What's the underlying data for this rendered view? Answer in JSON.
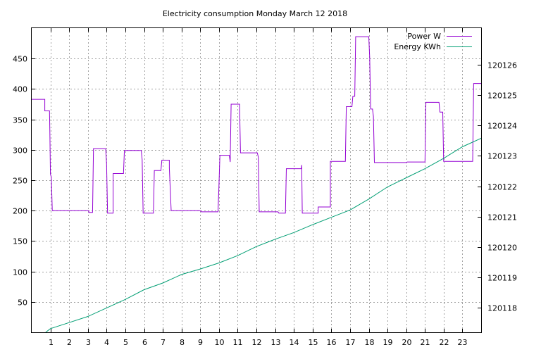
{
  "chart_data": {
    "type": "line",
    "title": "Electricity consumption Monday March 12 2018",
    "xlim": [
      0,
      24
    ],
    "x_ticks": [
      1,
      2,
      3,
      4,
      5,
      6,
      7,
      8,
      9,
      10,
      11,
      12,
      13,
      14,
      15,
      16,
      17,
      18,
      19,
      20,
      21,
      22,
      23
    ],
    "y_left": {
      "ylim": [
        0,
        500
      ],
      "ticks": [
        50,
        100,
        150,
        200,
        250,
        300,
        350,
        400,
        450
      ]
    },
    "y_right": {
      "ylim": [
        120117.2,
        120127.2
      ],
      "ticks": [
        120118,
        120119,
        120120,
        120121,
        120122,
        120123,
        120124,
        120125,
        120126
      ]
    },
    "grid": true,
    "legend_position": "top-right",
    "colors": {
      "power": "#9400d3",
      "energy": "#009e73"
    },
    "series": [
      {
        "name": "Power W",
        "axis": "left",
        "step": true,
        "points": [
          [
            0,
            383
          ],
          [
            0.7,
            383
          ],
          [
            0.7,
            364
          ],
          [
            0.95,
            364
          ],
          [
            0.97,
            328
          ],
          [
            1.0,
            260
          ],
          [
            1.05,
            255
          ],
          [
            1.1,
            200
          ],
          [
            3.05,
            200
          ],
          [
            3.05,
            197
          ],
          [
            3.25,
            197
          ],
          [
            3.3,
            302
          ],
          [
            3.95,
            302
          ],
          [
            4.0,
            277
          ],
          [
            4.05,
            196
          ],
          [
            4.35,
            196
          ],
          [
            4.35,
            261
          ],
          [
            4.9,
            261
          ],
          [
            4.95,
            299
          ],
          [
            5.85,
            299
          ],
          [
            5.9,
            284
          ],
          [
            5.95,
            196
          ],
          [
            6.5,
            196
          ],
          [
            6.55,
            266
          ],
          [
            6.9,
            266
          ],
          [
            6.95,
            283
          ],
          [
            7.35,
            283
          ],
          [
            7.35,
            270
          ],
          [
            7.45,
            200
          ],
          [
            9.0,
            200
          ],
          [
            9.05,
            198
          ],
          [
            9.95,
            198
          ],
          [
            10.0,
            240
          ],
          [
            10.05,
            291
          ],
          [
            10.55,
            291
          ],
          [
            10.6,
            280
          ],
          [
            10.65,
            375
          ],
          [
            11.1,
            375
          ],
          [
            11.12,
            342
          ],
          [
            11.15,
            295
          ],
          [
            12.05,
            295
          ],
          [
            12.1,
            288
          ],
          [
            12.15,
            198
          ],
          [
            13.15,
            198
          ],
          [
            13.2,
            196
          ],
          [
            13.55,
            196
          ],
          [
            13.6,
            269
          ],
          [
            14.4,
            269
          ],
          [
            14.42,
            275
          ],
          [
            14.45,
            196
          ],
          [
            15.3,
            196
          ],
          [
            15.3,
            206
          ],
          [
            15.95,
            206
          ],
          [
            15.95,
            281
          ],
          [
            16.75,
            281
          ],
          [
            16.8,
            371
          ],
          [
            17.1,
            371
          ],
          [
            17.15,
            388
          ],
          [
            17.25,
            388
          ],
          [
            17.3,
            486
          ],
          [
            18.0,
            486
          ],
          [
            18.05,
            452
          ],
          [
            18.1,
            367
          ],
          [
            18.2,
            367
          ],
          [
            18.25,
            355
          ],
          [
            18.3,
            279
          ],
          [
            20.0,
            279
          ],
          [
            20.05,
            280
          ],
          [
            21.0,
            280
          ],
          [
            21.05,
            378
          ],
          [
            21.75,
            378
          ],
          [
            21.8,
            362
          ],
          [
            21.95,
            362
          ],
          [
            22.0,
            281
          ],
          [
            23.55,
            281
          ],
          [
            23.6,
            409
          ],
          [
            24.0,
            409
          ]
        ]
      },
      {
        "name": "Energy KWh",
        "axis": "right",
        "step": false,
        "points": [
          [
            0.75,
            120117.2
          ],
          [
            1,
            120117.32
          ],
          [
            2,
            120117.52
          ],
          [
            3,
            120117.72
          ],
          [
            4,
            120118.0
          ],
          [
            5,
            120118.28
          ],
          [
            6,
            120118.6
          ],
          [
            7,
            120118.82
          ],
          [
            8,
            120119.1
          ],
          [
            9,
            120119.28
          ],
          [
            10,
            120119.48
          ],
          [
            11,
            120119.72
          ],
          [
            12,
            120120.02
          ],
          [
            13,
            120120.26
          ],
          [
            14,
            120120.48
          ],
          [
            15,
            120120.74
          ],
          [
            16,
            120120.98
          ],
          [
            17,
            120121.22
          ],
          [
            18,
            120121.58
          ],
          [
            19,
            120121.98
          ],
          [
            20,
            120122.28
          ],
          [
            21,
            120122.58
          ],
          [
            22,
            120122.92
          ],
          [
            23,
            120123.3
          ],
          [
            24,
            120123.58
          ]
        ]
      }
    ]
  }
}
